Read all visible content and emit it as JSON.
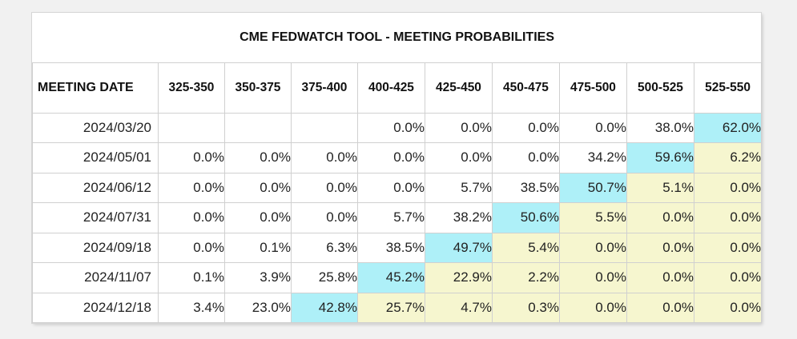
{
  "title": "CME FEDWATCH TOOL - MEETING PROBABILITIES",
  "header": {
    "meeting_date_label": "MEETING DATE",
    "ranges": [
      "325-350",
      "350-375",
      "375-400",
      "400-425",
      "425-450",
      "450-475",
      "475-500",
      "500-525",
      "525-550"
    ]
  },
  "colors": {
    "highlight_max": "#aef0f8",
    "highlight_above": "#f6f6cf",
    "cell_default": "#ffffff"
  },
  "rows": [
    {
      "date": "2024/03/20",
      "values": [
        "",
        "",
        "",
        "0.0%",
        "0.0%",
        "0.0%",
        "0.0%",
        "38.0%",
        "62.0%"
      ],
      "highlight": [
        "none",
        "none",
        "none",
        "none",
        "none",
        "none",
        "none",
        "none",
        "cur"
      ]
    },
    {
      "date": "2024/05/01",
      "values": [
        "0.0%",
        "0.0%",
        "0.0%",
        "0.0%",
        "0.0%",
        "0.0%",
        "34.2%",
        "59.6%",
        "6.2%"
      ],
      "highlight": [
        "none",
        "none",
        "none",
        "none",
        "none",
        "none",
        "none",
        "cur",
        "past"
      ]
    },
    {
      "date": "2024/06/12",
      "values": [
        "0.0%",
        "0.0%",
        "0.0%",
        "0.0%",
        "5.7%",
        "38.5%",
        "50.7%",
        "5.1%",
        "0.0%"
      ],
      "highlight": [
        "none",
        "none",
        "none",
        "none",
        "none",
        "none",
        "cur",
        "past",
        "past"
      ]
    },
    {
      "date": "2024/07/31",
      "values": [
        "0.0%",
        "0.0%",
        "0.0%",
        "5.7%",
        "38.2%",
        "50.6%",
        "5.5%",
        "0.0%",
        "0.0%"
      ],
      "highlight": [
        "none",
        "none",
        "none",
        "none",
        "none",
        "cur",
        "past",
        "past",
        "past"
      ]
    },
    {
      "date": "2024/09/18",
      "values": [
        "0.0%",
        "0.1%",
        "6.3%",
        "38.5%",
        "49.7%",
        "5.4%",
        "0.0%",
        "0.0%",
        "0.0%"
      ],
      "highlight": [
        "none",
        "none",
        "none",
        "none",
        "cur",
        "past",
        "past",
        "past",
        "past"
      ]
    },
    {
      "date": "2024/11/07",
      "values": [
        "0.1%",
        "3.9%",
        "25.8%",
        "45.2%",
        "22.9%",
        "2.2%",
        "0.0%",
        "0.0%",
        "0.0%"
      ],
      "highlight": [
        "none",
        "none",
        "none",
        "cur",
        "past",
        "past",
        "past",
        "past",
        "past"
      ]
    },
    {
      "date": "2024/12/18",
      "values": [
        "3.4%",
        "23.0%",
        "42.8%",
        "25.7%",
        "4.7%",
        "0.3%",
        "0.0%",
        "0.0%",
        "0.0%"
      ],
      "highlight": [
        "none",
        "none",
        "cur",
        "past",
        "past",
        "past",
        "past",
        "past",
        "past"
      ]
    }
  ]
}
